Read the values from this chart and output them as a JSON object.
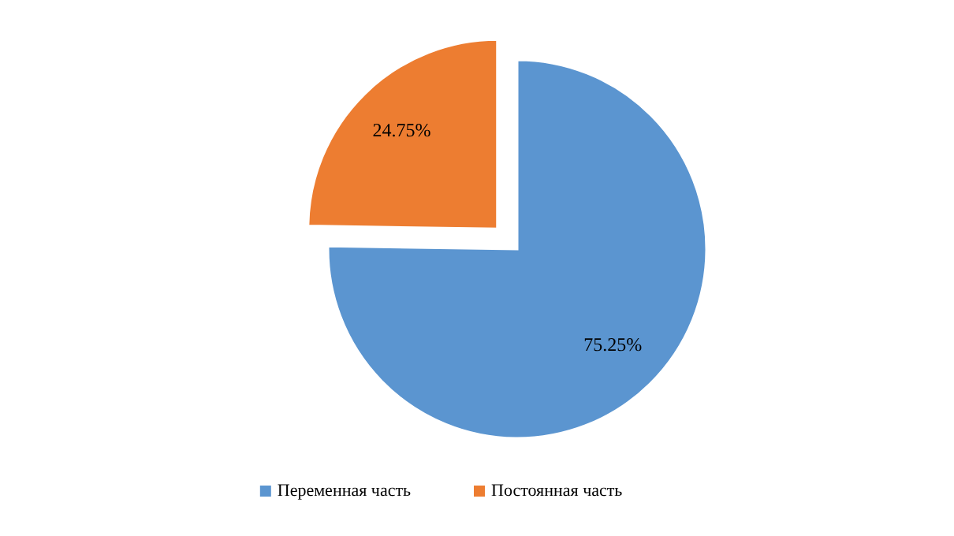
{
  "chart_data": {
    "type": "pie",
    "categories": [
      "Переменная часть",
      "Постоянная часть"
    ],
    "values": [
      75.25,
      24.75
    ],
    "colors": [
      "#5b95d0",
      "#ed7d31"
    ],
    "value_labels": [
      "75.25%",
      "24.75%"
    ],
    "legend": "bottom"
  }
}
